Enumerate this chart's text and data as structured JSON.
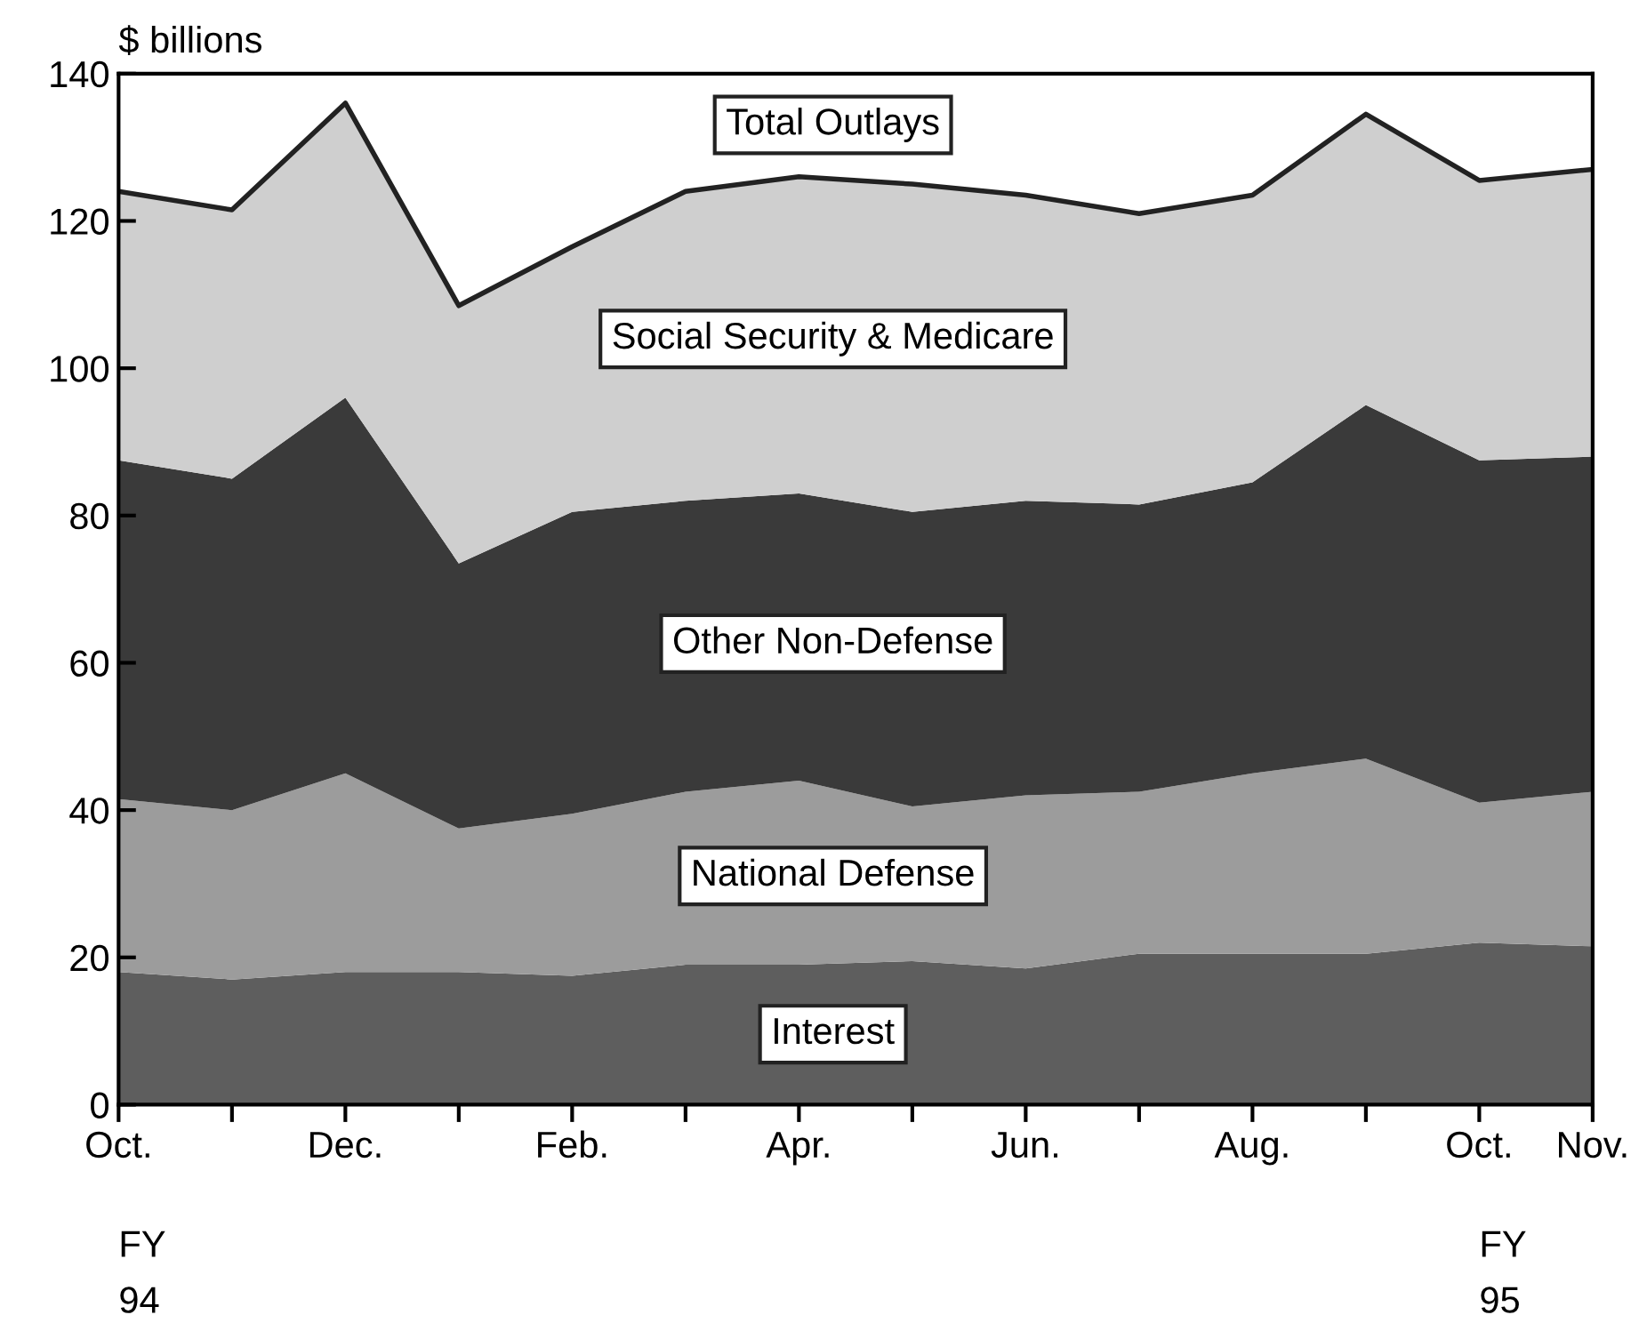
{
  "chart_data": {
    "type": "area",
    "stacked": true,
    "ylabel": "$ billions",
    "categories": [
      "Oct.",
      null,
      "Dec.",
      null,
      "Feb.",
      null,
      "Apr.",
      null,
      "Jun.",
      null,
      "Aug.",
      null,
      "Oct.",
      "Nov."
    ],
    "series": [
      {
        "name": "Interest",
        "color": "#5e5e5e",
        "values": [
          18,
          17,
          18,
          18,
          17.5,
          19,
          19,
          19.5,
          18.5,
          20.5,
          20.5,
          20.5,
          22,
          21.5
        ]
      },
      {
        "name": "National Defense",
        "color": "#9c9c9c",
        "values": [
          23.5,
          23,
          27,
          19.5,
          22,
          23.5,
          25,
          21,
          23.5,
          22,
          24.5,
          26.5,
          19,
          21
        ]
      },
      {
        "name": "Other Non-Defense",
        "color": "#3a3a3a",
        "values": [
          46,
          45,
          51,
          36,
          41,
          39.5,
          39,
          40,
          40,
          39,
          39.5,
          48,
          46.5,
          45.5
        ]
      },
      {
        "name": "Social Security & Medicare",
        "color": "#cfcfcf",
        "values": [
          36.5,
          36.5,
          40,
          35,
          36,
          42,
          43,
          44.5,
          41.5,
          39.5,
          39,
          39.5,
          38,
          39
        ]
      }
    ],
    "ylim": [
      0,
      140
    ],
    "yticks": [
      0,
      20,
      40,
      60,
      80,
      100,
      120,
      140
    ],
    "grid": false,
    "legend": false,
    "annotations": [
      {
        "text": "Total Outlays",
        "x": "Apr.",
        "y": 126
      },
      "FY\n94",
      "FY\n95"
    ]
  }
}
